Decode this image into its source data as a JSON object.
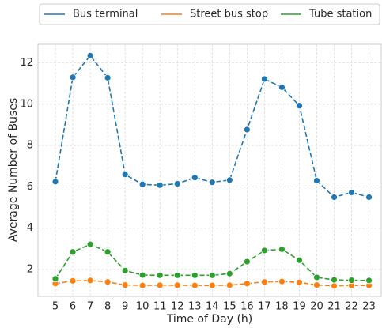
{
  "chart_data": {
    "type": "line",
    "x_label": "Time of Day (h)",
    "y_label": "Average Number of Buses",
    "x": [
      5,
      6,
      7,
      8,
      9,
      10,
      11,
      12,
      13,
      14,
      15,
      16,
      17,
      18,
      19,
      20,
      21,
      22,
      23
    ],
    "series": [
      {
        "name": "Bus terminal",
        "color": "#1f77b4",
        "values": [
          6.25,
          11.3,
          12.35,
          11.28,
          6.6,
          6.12,
          6.08,
          6.15,
          6.45,
          6.22,
          6.33,
          8.77,
          11.22,
          10.82,
          9.93,
          6.3,
          5.5,
          5.73,
          5.5
        ]
      },
      {
        "name": "Street bus stop",
        "color": "#ff7f0e",
        "values": [
          1.32,
          1.45,
          1.47,
          1.4,
          1.25,
          1.23,
          1.24,
          1.24,
          1.23,
          1.23,
          1.24,
          1.32,
          1.4,
          1.42,
          1.38,
          1.25,
          1.21,
          1.23,
          1.23
        ]
      },
      {
        "name": "Tube station",
        "color": "#2ca02c",
        "values": [
          1.55,
          2.85,
          3.22,
          2.85,
          1.95,
          1.73,
          1.72,
          1.72,
          1.72,
          1.72,
          1.8,
          2.38,
          2.92,
          2.98,
          2.45,
          1.62,
          1.5,
          1.48,
          1.47
        ]
      }
    ],
    "xlim": [
      4,
      23.7
    ],
    "ylim": [
      0.7,
      12.9
    ],
    "xticks": [
      5,
      6,
      7,
      8,
      9,
      10,
      11,
      12,
      13,
      14,
      15,
      16,
      17,
      18,
      19,
      20,
      21,
      22,
      23
    ],
    "yticks": [
      2,
      4,
      6,
      8,
      10,
      12
    ],
    "grid": true,
    "legend": "top",
    "line_style": "dashed",
    "markers": true
  }
}
